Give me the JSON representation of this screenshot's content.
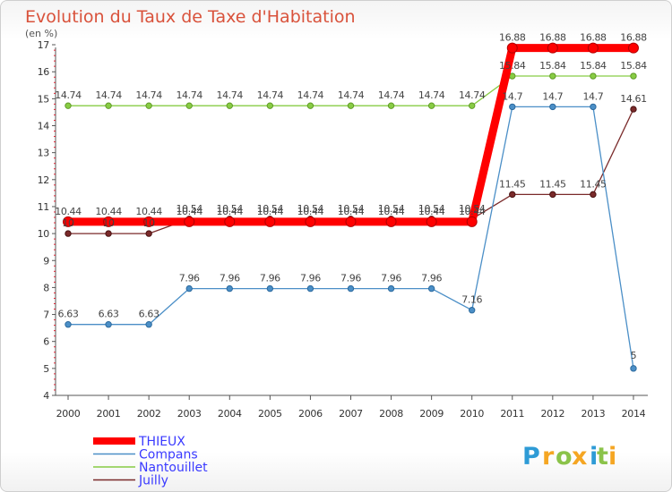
{
  "chart_data": {
    "type": "line",
    "title": "Evolution du Taux de Taxe d'Habitation",
    "ylabel": "(en %)",
    "xlabel": "",
    "x": [
      "2000",
      "2001",
      "2002",
      "2003",
      "2004",
      "2005",
      "2006",
      "2007",
      "2008",
      "2009",
      "2010",
      "2011",
      "2012",
      "2013",
      "2014"
    ],
    "ylim": [
      4,
      17
    ],
    "yticks": [
      "4",
      "5",
      "6",
      "7",
      "8",
      "9",
      "10",
      "11",
      "12",
      "13",
      "14",
      "15",
      "16",
      "17"
    ],
    "grid": false,
    "legend_position": "bottom-left",
    "series": [
      {
        "name": "THIEUX",
        "color": "#ff0000",
        "values": [
          10.44,
          10.44,
          10.44,
          10.44,
          10.44,
          10.44,
          10.44,
          10.44,
          10.44,
          10.44,
          10.44,
          16.88,
          16.88,
          16.88,
          16.88
        ],
        "labels": [
          "10.44",
          "10.44",
          "10.44",
          "10.44",
          "10.44",
          "10.44",
          "10.44",
          "10.44",
          "10.44",
          "10.44",
          "10.44",
          "16.88",
          "16.88",
          "16.88",
          "16.88"
        ]
      },
      {
        "name": "Compans",
        "color": "#4b8fc7",
        "values": [
          6.63,
          6.63,
          6.63,
          7.96,
          7.96,
          7.96,
          7.96,
          7.96,
          7.96,
          7.96,
          7.16,
          14.7,
          14.7,
          14.7,
          5
        ],
        "labels": [
          "6.63",
          "6.63",
          "6.63",
          "7.96",
          "7.96",
          "7.96",
          "7.96",
          "7.96",
          "7.96",
          "7.96",
          "7.16",
          "14.7",
          "14.7",
          "14.7",
          "5"
        ]
      },
      {
        "name": "Nantouillet",
        "color": "#88cc44",
        "values": [
          14.74,
          14.74,
          14.74,
          14.74,
          14.74,
          14.74,
          14.74,
          14.74,
          14.74,
          14.74,
          14.74,
          15.84,
          15.84,
          15.84,
          15.84
        ],
        "labels": [
          "14.74",
          "14.74",
          "14.74",
          "14.74",
          "14.74",
          "14.74",
          "14.74",
          "14.74",
          "14.74",
          "14.74",
          "14.74",
          "15.84",
          "15.84",
          "15.84",
          "15.84"
        ]
      },
      {
        "name": "Juilly",
        "color": "#7a2a2a",
        "values": [
          10,
          10,
          10,
          10.54,
          10.54,
          10.54,
          10.54,
          10.54,
          10.54,
          10.54,
          10.54,
          11.45,
          11.45,
          11.45,
          14.61
        ],
        "labels": [
          "10",
          "10",
          "10",
          "10.54",
          "10.54",
          "10.54",
          "10.54",
          "10.54",
          "10.54",
          "10.54",
          "10.54",
          "11.45",
          "11.45",
          "11.45",
          "14.61"
        ]
      }
    ]
  },
  "branding": {
    "letters": [
      "P",
      "r",
      "o",
      "x",
      "i",
      "t",
      "i"
    ],
    "colors": [
      "#2e9bd6",
      "#f5a623",
      "#8bc34a",
      "#f5a623",
      "#2e9bd6",
      "#8bc34a",
      "#f5a623"
    ]
  }
}
